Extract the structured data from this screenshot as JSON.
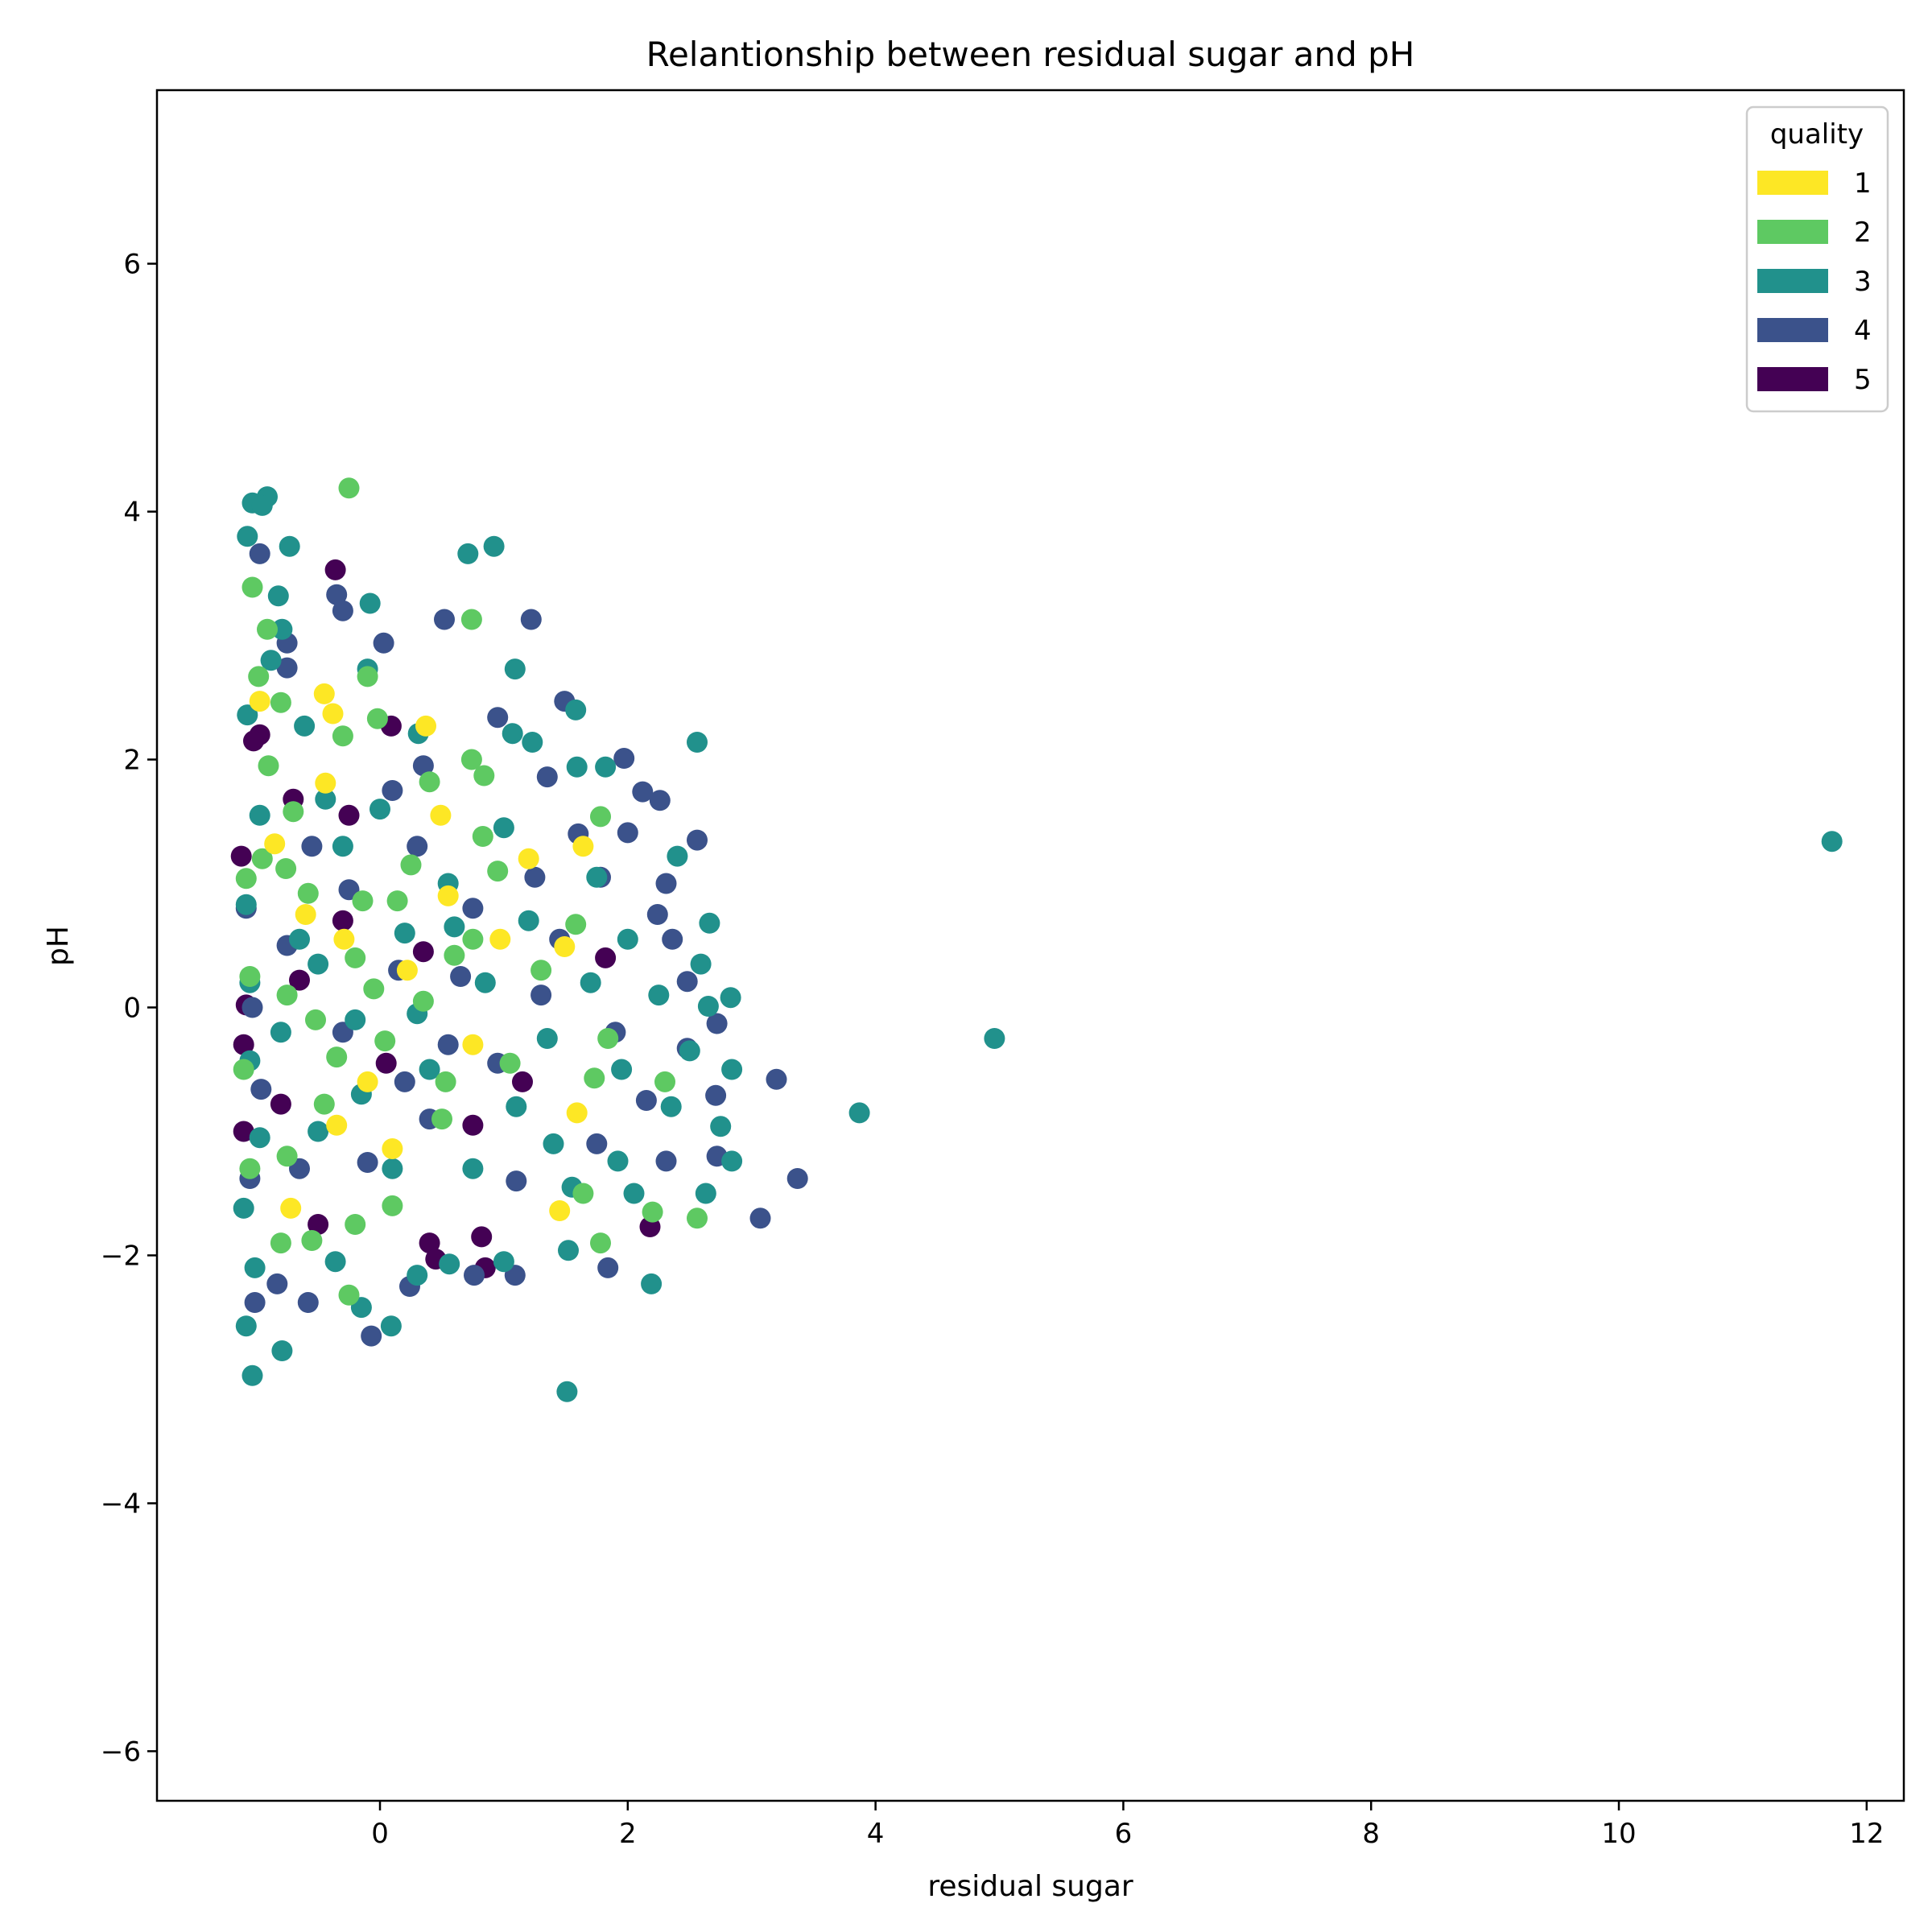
{
  "chart_data": {
    "type": "scatter",
    "title": "Relantionship between residual sugar and pH",
    "xlabel": "residual sugar",
    "ylabel": "pH",
    "xlim": [
      -1.8,
      12.3
    ],
    "ylim": [
      -6.4,
      7.4
    ],
    "xticks": [
      0,
      2,
      4,
      6,
      8,
      10,
      12
    ],
    "yticks": [
      -6,
      -4,
      -2,
      0,
      2,
      4,
      6
    ],
    "xtick_labels": [
      "0",
      "2",
      "4",
      "6",
      "8",
      "10",
      "12"
    ],
    "ytick_labels": [
      "−6",
      "−4",
      "−2",
      "0",
      "2",
      "4",
      "6"
    ],
    "grid": false,
    "legend": {
      "title": "quality",
      "placement": "top-right",
      "entries": [
        {
          "label": "1",
          "color": "#fde725"
        },
        {
          "label": "2",
          "color": "#5ec962"
        },
        {
          "label": "3",
          "color": "#21918c"
        },
        {
          "label": "4",
          "color": "#3b528b"
        },
        {
          "label": "5",
          "color": "#440154"
        }
      ]
    },
    "series": [
      {
        "name": "1",
        "color": "#fde725",
        "points": [
          [
            -0.97,
            2.47
          ],
          [
            -0.45,
            2.53
          ],
          [
            -0.38,
            2.37
          ],
          [
            0.37,
            2.27
          ],
          [
            -0.44,
            1.81
          ],
          [
            0.97,
            0.55
          ],
          [
            -0.29,
            0.55
          ],
          [
            1.49,
            0.49
          ],
          [
            1.59,
            -0.85
          ],
          [
            0.1,
            -1.14
          ],
          [
            -0.72,
            -1.62
          ],
          [
            1.45,
            -1.64
          ],
          [
            0.49,
            1.55
          ],
          [
            -0.85,
            1.32
          ],
          [
            -0.6,
            0.75
          ],
          [
            0.22,
            0.3
          ],
          [
            0.75,
            -0.3
          ],
          [
            -0.35,
            -0.95
          ],
          [
            1.2,
            1.2
          ],
          [
            1.64,
            1.3
          ],
          [
            -0.1,
            -0.6
          ],
          [
            0.55,
            0.9
          ]
        ]
      },
      {
        "name": "2",
        "color": "#5ec962",
        "points": [
          [
            -0.25,
            4.19
          ],
          [
            0.74,
            3.13
          ],
          [
            -1.03,
            3.39
          ],
          [
            -0.91,
            3.05
          ],
          [
            -0.98,
            2.67
          ],
          [
            -0.1,
            2.67
          ],
          [
            -0.8,
            2.46
          ],
          [
            -0.02,
            2.33
          ],
          [
            -0.3,
            2.19
          ],
          [
            0.74,
            2.0
          ],
          [
            0.84,
            1.87
          ],
          [
            1.78,
            1.54
          ],
          [
            0.4,
            1.82
          ],
          [
            -0.9,
            1.95
          ],
          [
            -0.7,
            1.58
          ],
          [
            -0.95,
            1.2
          ],
          [
            -0.76,
            1.12
          ],
          [
            -0.58,
            0.92
          ],
          [
            0.14,
            0.86
          ],
          [
            -0.14,
            0.86
          ],
          [
            0.83,
            1.38
          ],
          [
            1.58,
            0.67
          ],
          [
            0.6,
            0.42
          ],
          [
            -0.05,
            0.15
          ],
          [
            0.53,
            -0.6
          ],
          [
            1.84,
            -0.25
          ],
          [
            1.73,
            -0.57
          ],
          [
            0.04,
            -0.27
          ],
          [
            -0.35,
            -0.4
          ],
          [
            -0.45,
            -0.78
          ],
          [
            -0.75,
            -1.2
          ],
          [
            0.5,
            -0.9
          ],
          [
            1.78,
            -1.9
          ],
          [
            2.2,
            -1.65
          ],
          [
            2.56,
            -1.7
          ],
          [
            1.64,
            -1.5
          ],
          [
            0.1,
            -1.6
          ],
          [
            -0.8,
            -1.9
          ],
          [
            -0.55,
            -1.88
          ],
          [
            -0.25,
            -2.32
          ],
          [
            -0.2,
            -1.75
          ],
          [
            -1.05,
            -1.3
          ],
          [
            -1.1,
            -0.5
          ],
          [
            -1.05,
            0.25
          ],
          [
            -1.08,
            1.04
          ],
          [
            -0.75,
            0.1
          ],
          [
            -0.52,
            -0.1
          ],
          [
            0.25,
            1.15
          ],
          [
            0.95,
            1.1
          ],
          [
            1.3,
            0.3
          ],
          [
            1.05,
            -0.45
          ],
          [
            2.3,
            -0.6
          ],
          [
            -0.2,
            0.4
          ],
          [
            0.35,
            0.05
          ],
          [
            0.75,
            0.55
          ]
        ]
      },
      {
        "name": "3",
        "color": "#21918c",
        "points": [
          [
            11.72,
            1.34
          ],
          [
            4.96,
            -0.25
          ],
          [
            3.87,
            -0.85
          ],
          [
            1.51,
            -3.1
          ],
          [
            -1.03,
            -2.97
          ],
          [
            -0.79,
            -2.77
          ],
          [
            -1.08,
            -2.57
          ],
          [
            0.09,
            -2.57
          ],
          [
            -1.03,
            4.07
          ],
          [
            -0.91,
            4.12
          ],
          [
            -1.07,
            3.8
          ],
          [
            -0.95,
            4.05
          ],
          [
            -0.73,
            3.72
          ],
          [
            0.71,
            3.66
          ],
          [
            0.92,
            3.72
          ],
          [
            -0.08,
            3.26
          ],
          [
            1.09,
            2.73
          ],
          [
            -0.1,
            2.73
          ],
          [
            1.07,
            2.21
          ],
          [
            2.56,
            2.14
          ],
          [
            1.58,
            2.4
          ],
          [
            1.23,
            2.14
          ],
          [
            0.31,
            2.21
          ],
          [
            -0.82,
            3.32
          ],
          [
            -0.79,
            3.05
          ],
          [
            -0.88,
            2.8
          ],
          [
            -0.61,
            2.27
          ],
          [
            -0.44,
            1.68
          ],
          [
            1.59,
            1.94
          ],
          [
            1.82,
            1.94
          ],
          [
            2.4,
            1.22
          ],
          [
            2.66,
            0.68
          ],
          [
            2.83,
            0.08
          ],
          [
            2.65,
            0.01
          ],
          [
            2.59,
            0.35
          ],
          [
            2.84,
            -0.5
          ],
          [
            2.75,
            -0.96
          ],
          [
            2.84,
            -1.24
          ],
          [
            2.63,
            -1.5
          ],
          [
            2.19,
            -2.23
          ],
          [
            2.05,
            -1.5
          ],
          [
            1.92,
            -1.24
          ],
          [
            1.52,
            -1.96
          ],
          [
            1.0,
            -2.05
          ],
          [
            0.56,
            -2.07
          ],
          [
            0.3,
            -2.16
          ],
          [
            -0.15,
            -2.42
          ],
          [
            -0.36,
            -2.05
          ],
          [
            -1.01,
            -2.1
          ],
          [
            -1.1,
            -1.62
          ],
          [
            -0.97,
            -1.05
          ],
          [
            -1.05,
            -0.43
          ],
          [
            -1.05,
            0.2
          ],
          [
            -1.08,
            0.83
          ],
          [
            -0.97,
            1.55
          ],
          [
            -1.07,
            2.36
          ],
          [
            -0.5,
            0.35
          ],
          [
            -0.2,
            -0.1
          ],
          [
            0.4,
            -0.5
          ],
          [
            0.75,
            -1.3
          ],
          [
            1.1,
            -0.8
          ],
          [
            1.35,
            -0.25
          ],
          [
            1.7,
            0.2
          ],
          [
            2.0,
            0.55
          ],
          [
            2.25,
            0.1
          ],
          [
            2.35,
            -0.8
          ],
          [
            1.55,
            -1.45
          ],
          [
            0.1,
            -1.3
          ],
          [
            -0.5,
            -1.0
          ],
          [
            -0.8,
            -0.2
          ],
          [
            0.2,
            0.6
          ],
          [
            0.55,
            1.0
          ],
          [
            1.2,
            0.7
          ],
          [
            1.75,
            1.05
          ],
          [
            0.0,
            1.6
          ],
          [
            -0.3,
            1.3
          ],
          [
            0.85,
            0.2
          ],
          [
            0.3,
            -0.05
          ],
          [
            -0.65,
            0.55
          ],
          [
            1.4,
            -1.1
          ],
          [
            1.95,
            -0.5
          ],
          [
            2.5,
            -0.35
          ],
          [
            -0.15,
            -0.7
          ],
          [
            0.6,
            0.65
          ],
          [
            1.0,
            1.45
          ]
        ]
      },
      {
        "name": "4",
        "color": "#3b528b",
        "points": [
          [
            -0.97,
            3.66
          ],
          [
            -0.35,
            3.33
          ],
          [
            -0.3,
            3.2
          ],
          [
            0.52,
            3.13
          ],
          [
            1.22,
            3.13
          ],
          [
            0.03,
            2.94
          ],
          [
            -0.75,
            2.94
          ],
          [
            -0.75,
            2.74
          ],
          [
            1.49,
            2.47
          ],
          [
            1.97,
            2.01
          ],
          [
            2.0,
            1.41
          ],
          [
            2.12,
            1.74
          ],
          [
            2.26,
            1.67
          ],
          [
            2.56,
            1.35
          ],
          [
            2.31,
            1.0
          ],
          [
            2.24,
            0.75
          ],
          [
            2.36,
            0.55
          ],
          [
            2.48,
            0.21
          ],
          [
            2.48,
            -0.33
          ],
          [
            2.72,
            -0.13
          ],
          [
            2.71,
            -0.71
          ],
          [
            3.2,
            -0.58
          ],
          [
            3.37,
            -1.38
          ],
          [
            3.07,
            -1.7
          ],
          [
            2.72,
            -1.2
          ],
          [
            2.31,
            -1.24
          ],
          [
            1.84,
            -2.1
          ],
          [
            1.09,
            -2.16
          ],
          [
            0.76,
            -2.16
          ],
          [
            0.24,
            -2.25
          ],
          [
            -0.07,
            -2.65
          ],
          [
            -0.58,
            -2.38
          ],
          [
            -0.83,
            -2.23
          ],
          [
            -1.01,
            -2.38
          ],
          [
            -1.05,
            -1.38
          ],
          [
            -0.96,
            -0.66
          ],
          [
            -1.03,
            0.0
          ],
          [
            -1.08,
            0.8
          ],
          [
            -0.55,
            1.3
          ],
          [
            0.1,
            1.75
          ],
          [
            0.95,
            2.34
          ],
          [
            0.35,
            1.95
          ],
          [
            1.35,
            1.86
          ],
          [
            1.78,
            1.05
          ],
          [
            1.45,
            0.55
          ],
          [
            0.75,
            0.8
          ],
          [
            0.15,
            0.3
          ],
          [
            -0.3,
            -0.2
          ],
          [
            0.4,
            -0.9
          ],
          [
            1.1,
            -1.4
          ],
          [
            1.75,
            -1.1
          ],
          [
            2.15,
            -0.75
          ],
          [
            0.55,
            -0.3
          ],
          [
            -0.25,
            0.95
          ],
          [
            -0.65,
            -1.3
          ],
          [
            0.95,
            -0.45
          ],
          [
            1.3,
            0.1
          ],
          [
            1.9,
            -0.2
          ],
          [
            0.3,
            1.3
          ],
          [
            -0.1,
            -1.25
          ],
          [
            1.6,
            1.4
          ],
          [
            0.65,
            0.25
          ],
          [
            0.2,
            -0.6
          ],
          [
            1.25,
            1.05
          ],
          [
            -0.75,
            0.5
          ]
        ]
      },
      {
        "name": "5",
        "color": "#440154",
        "points": [
          [
            -0.36,
            3.53
          ],
          [
            0.09,
            2.27
          ],
          [
            -0.97,
            2.2
          ],
          [
            -1.02,
            2.15
          ],
          [
            -0.7,
            1.68
          ],
          [
            -0.25,
            1.55
          ],
          [
            -1.12,
            1.22
          ],
          [
            -1.08,
            0.02
          ],
          [
            -1.1,
            -0.3
          ],
          [
            -1.1,
            -1.0
          ],
          [
            -0.8,
            -0.78
          ],
          [
            -0.5,
            -1.75
          ],
          [
            0.4,
            -1.9
          ],
          [
            0.45,
            -2.03
          ],
          [
            0.82,
            -1.85
          ],
          [
            0.85,
            -2.1
          ],
          [
            2.18,
            -1.77
          ],
          [
            1.82,
            0.4
          ],
          [
            -0.65,
            0.22
          ],
          [
            0.05,
            -0.45
          ],
          [
            0.75,
            -0.95
          ],
          [
            1.15,
            -0.6
          ],
          [
            -0.3,
            0.7
          ],
          [
            0.35,
            0.45
          ]
        ]
      }
    ]
  }
}
